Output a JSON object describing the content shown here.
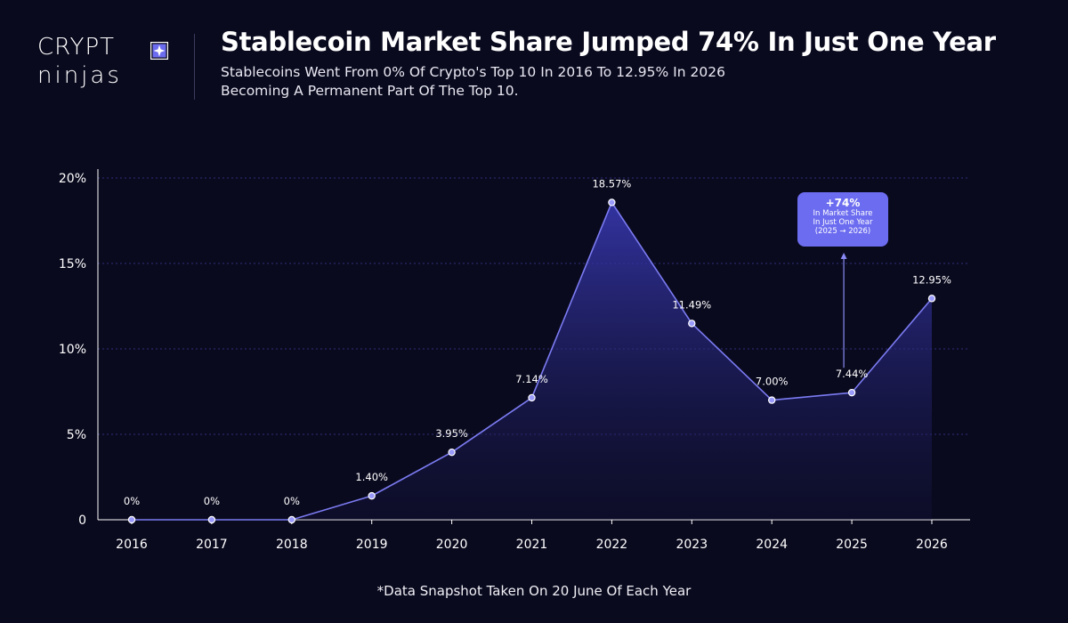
{
  "brand": {
    "logo_top": "CRYPT",
    "logo_bottom": "ninjas"
  },
  "header": {
    "title": "Stablecoin Market Share Jumped 74% In Just One Year",
    "subtitle_1": "Stablecoins Went From 0% Of Crypto's Top 10 In 2016 To 12.95% In 2026",
    "subtitle_2": "Becoming A Permanent Part Of The Top 10."
  },
  "colors": {
    "background": "#0a0a1f",
    "line": "#7b7bf2",
    "area": "#3a3ab8",
    "marker_fill": "#9a9afa",
    "grid": "#2e2e7a",
    "callout": "#6c6cf0"
  },
  "chart_data": {
    "type": "area",
    "categories": [
      "2016",
      "2017",
      "2018",
      "2019",
      "2020",
      "2021",
      "2022",
      "2023",
      "2024",
      "2025",
      "2026"
    ],
    "values": [
      0,
      0,
      0,
      1.4,
      3.95,
      7.14,
      18.57,
      11.49,
      7.0,
      7.44,
      12.95
    ],
    "data_labels": [
      "0%",
      "0%",
      "0%",
      "1.40%",
      "3.95%",
      "7.14%",
      "18.57%",
      "11.49%",
      "7.00%",
      "7.44%",
      "12.95%"
    ],
    "y_ticks": [
      0,
      5,
      10,
      15,
      20
    ],
    "y_tick_labels": [
      "0",
      "5%",
      "10%",
      "15%",
      "20%"
    ],
    "ylim": [
      0,
      20
    ],
    "grid": "horizontal dotted",
    "legend": "none",
    "annotation": {
      "value": "+74%",
      "line_1": "In Market Share",
      "line_2": "In Just One Year",
      "line_3": "(2025 → 2026)",
      "anchor_category": "2025"
    }
  },
  "footnote": "*Data Snapshot Taken On 20 June Of Each Year"
}
